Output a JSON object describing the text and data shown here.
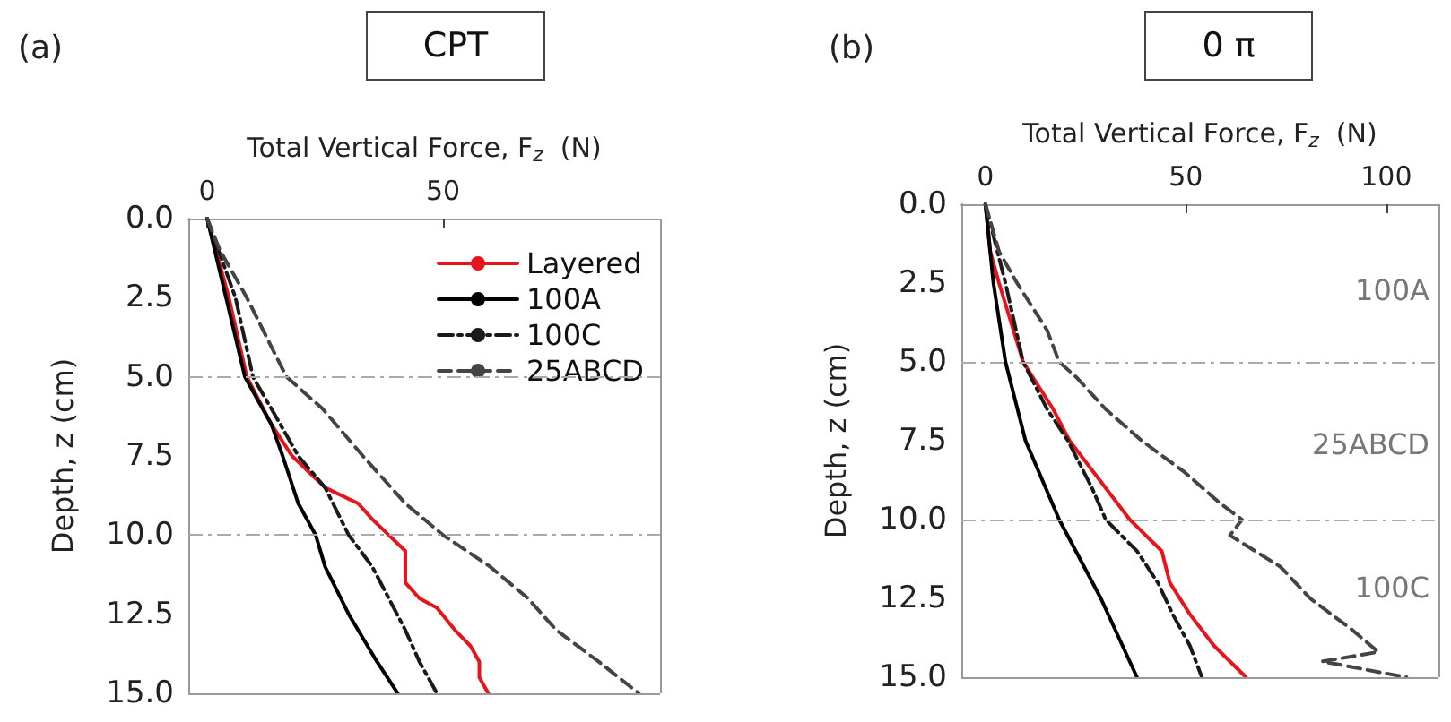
{
  "chart_data": [
    {
      "type": "line",
      "title": "CPT",
      "xlabel": "Total Vertical Force, F$_{z}$  (N)",
      "ylabel": "Depth, z (cm)",
      "annotations": [
        "(a)"
      ],
      "xlim": [
        -4,
        96
      ],
      "xticks": [
        0,
        50
      ],
      "ylim": [
        15,
        0
      ],
      "yticks": [
        {
          "value": 0,
          "label": "0.0"
        },
        2.5,
        {
          "value": 5,
          "label": "5.0"
        },
        7.5,
        {
          "value": 10,
          "label": "10.0"
        },
        12.5,
        {
          "value": 15,
          "label": "15.0"
        }
      ],
      "grid": false,
      "legend": "top right",
      "marker": "none",
      "ref_lines": [
        {
          "axis": "y",
          "value": 5,
          "color": "#aaaaaa",
          "line_style": "dashdot"
        },
        {
          "axis": "y",
          "value": 10,
          "color": "#aaaaaa",
          "line_style": "dashdot"
        }
      ],
      "series": [
        {
          "name": "Layered",
          "color": "#e8141b",
          "line_style": "solid",
          "x": [
            0,
            4.6,
            8.4,
            13.6,
            18,
            25,
            32,
            35,
            38.5,
            42,
            42,
            45,
            48.7,
            52.5,
            55.8,
            57.7,
            57.7,
            59.6
          ],
          "values": [
            0,
            2.5,
            5,
            6.5,
            7.5,
            8.5,
            9,
            9.5,
            10,
            10.5,
            11.5,
            12,
            12.3,
            13,
            13.5,
            14,
            14.5,
            15
          ]
        },
        {
          "name": "100A",
          "color": "#000000",
          "line_style": "solid",
          "x": [
            0,
            4,
            8,
            13.6,
            16,
            19.3,
            23,
            25,
            30,
            36,
            40.4
          ],
          "values": [
            0,
            2.5,
            5,
            6.5,
            7.5,
            9,
            10,
            11,
            12.5,
            14,
            15
          ]
        },
        {
          "name": "100C",
          "color": "#1a1a1a",
          "line_style": "dashdot",
          "x": [
            0,
            6,
            9.7,
            15.5,
            19.3,
            25,
            30,
            35,
            38.5,
            42,
            45,
            48.7
          ],
          "values": [
            0,
            2.5,
            5,
            6.5,
            7.5,
            8.5,
            10,
            11,
            12,
            13,
            14,
            15
          ]
        },
        {
          "name": "25ABCD",
          "color": "#444444",
          "line_style": "dashed",
          "x": [
            0,
            2.7,
            8.4,
            16.8,
            24.4,
            33,
            42,
            50,
            60,
            68,
            74,
            83,
            91.5
          ],
          "values": [
            0,
            1,
            2.5,
            5,
            6,
            7.5,
            9,
            10,
            11,
            12,
            13,
            14,
            15
          ]
        }
      ]
    },
    {
      "type": "line",
      "title": "0 π",
      "xlabel": "Total Vertical Force, F$_{z}$  (N)",
      "ylabel": "Depth, z (cm)",
      "annotations": [
        "(b)",
        "100A",
        "25ABCD",
        "100C"
      ],
      "xlim": [
        -6,
        113
      ],
      "xticks": [
        0,
        50,
        100
      ],
      "ylim": [
        15,
        0
      ],
      "yticks": [
        {
          "value": 0,
          "label": "0.0"
        },
        2.5,
        {
          "value": 5,
          "label": "5.0"
        },
        7.5,
        {
          "value": 10,
          "label": "10.0"
        },
        12.5,
        {
          "value": 15,
          "label": "15.0"
        }
      ],
      "grid": false,
      "legend": false,
      "marker": "none",
      "ref_lines": [
        {
          "axis": "y",
          "value": 5,
          "color": "#aaaaaa",
          "line_style": "dashdot"
        },
        {
          "axis": "y",
          "value": 10,
          "color": "#aaaaaa",
          "line_style": "dashdot"
        }
      ],
      "series": [
        {
          "color": "#e8141b",
          "line_style": "solid",
          "x": [
            0,
            1.2,
            3.4,
            9.4,
            16.9,
            21,
            30,
            36,
            44,
            46,
            51,
            57,
            65
          ],
          "values": [
            0,
            1.5,
            2.5,
            5,
            6.5,
            7.5,
            9,
            10,
            11,
            12,
            13,
            14,
            15
          ]
        },
        {
          "color": "#000000",
          "line_style": "solid",
          "x": [
            0,
            2,
            5,
            10,
            18.4,
            28.8,
            37.8
          ],
          "values": [
            0,
            2.5,
            5,
            7.5,
            10,
            12.5,
            15
          ]
        },
        {
          "color": "#1a1a1a",
          "line_style": "dashdot",
          "x": [
            0,
            5,
            9.4,
            15.4,
            20.6,
            26.6,
            30,
            37.8,
            43,
            46.7,
            51,
            54
          ],
          "values": [
            0,
            2.5,
            5,
            6.5,
            7.5,
            9,
            10,
            11,
            12,
            13,
            14,
            15
          ]
        },
        {
          "color": "#444444",
          "line_style": "dashed",
          "x": [
            0,
            3.4,
            7.9,
            15.4,
            18.4,
            22.8,
            30,
            39,
            49.7,
            58.7,
            64,
            61,
            73.6,
            81,
            91.5,
            98,
            84,
            105
          ],
          "values": [
            0,
            1.5,
            2.5,
            4,
            5,
            5.5,
            6.5,
            7.5,
            8.5,
            9.5,
            10,
            10.5,
            11.5,
            12.5,
            13.5,
            14.2,
            14.5,
            15
          ]
        }
      ]
    }
  ]
}
